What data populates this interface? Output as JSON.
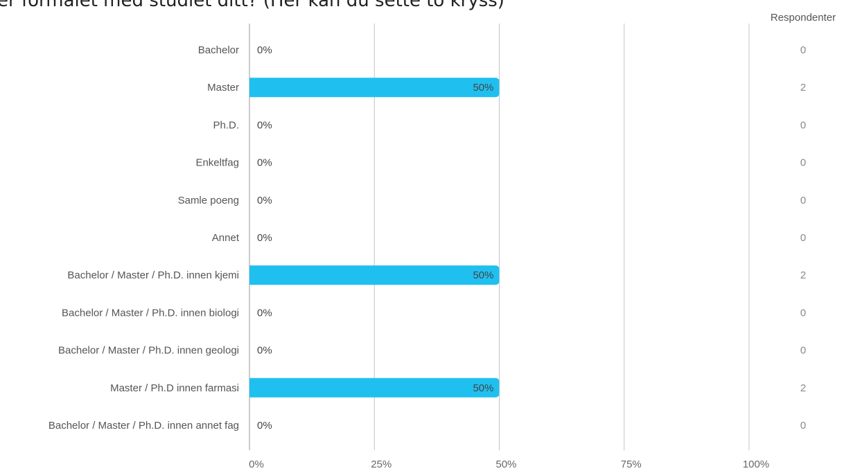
{
  "title": "er formålet med studiet ditt? (Her kan du sette to kryss)",
  "respondents_header": "Respondenter",
  "colors": {
    "bar": "#1fc0f0",
    "grid": "#c4c4c4",
    "axis": "#999999"
  },
  "chart_data": {
    "type": "bar",
    "orientation": "horizontal",
    "title": "er formålet med studiet ditt? (Her kan du sette to kryss)",
    "categories": [
      "Bachelor",
      "Master",
      "Ph.D.",
      "Enkeltfag",
      "Samle poeng",
      "Annet",
      "Bachelor / Master / Ph.D. innen kjemi",
      "Bachelor / Master / Ph.D. innen biologi",
      "Bachelor / Master / Ph.D. innen geologi",
      "Master / Ph.D innen farmasi",
      "Bachelor / Master / Ph.D. innen annet fag"
    ],
    "values": [
      0,
      50,
      0,
      0,
      0,
      0,
      50,
      0,
      0,
      50,
      0
    ],
    "value_labels": [
      "0%",
      "50%",
      "0%",
      "0%",
      "0%",
      "0%",
      "50%",
      "0%",
      "0%",
      "50%",
      "0%"
    ],
    "respondents": [
      0,
      2,
      0,
      0,
      0,
      0,
      2,
      0,
      0,
      2,
      0
    ],
    "x_ticks": [
      "0%",
      "25%",
      "50%",
      "75%",
      "100%"
    ],
    "x_tick_values": [
      0,
      25,
      50,
      75,
      100
    ],
    "xlim": [
      0,
      100
    ],
    "grid": true
  }
}
